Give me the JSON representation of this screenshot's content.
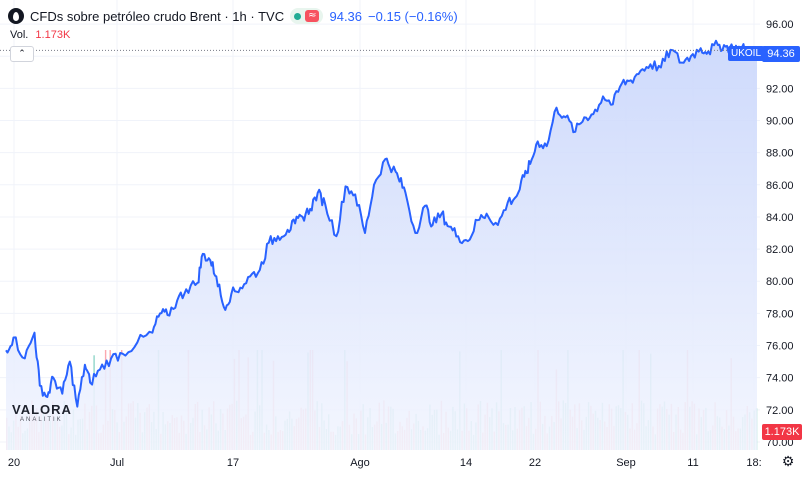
{
  "header": {
    "title": "CFDs sobre petróleo crudo Brent · 1h · TVC",
    "last_price": "94.36",
    "change": "−0.15 (−0.16%)",
    "volume_label": "Vol.",
    "volume_value": "1.173K",
    "status_icon": "market-open-dot",
    "waves_icon": "≈"
  },
  "collapse_glyph": "⌃",
  "symbol_tag": "UKOIL",
  "price_tag": "94.36",
  "volume_tag": "1.173K",
  "settings_glyph": "⚙",
  "watermark": {
    "brand": "VALORA",
    "sub": "ANALITIK"
  },
  "colors": {
    "line": "#2962ff",
    "area_top": "#c9d6fb",
    "area_bottom": "#f2f5fe",
    "volume_up": "#22ab94",
    "volume_down": "#f7525f",
    "price_tag": "#2962ff",
    "volume_tag": "#f23645"
  },
  "chart_data": {
    "type": "area",
    "title": "CFDs sobre petróleo crudo Brent · 1h · TVC",
    "xlabel": "",
    "ylabel": "",
    "x_tick_labels": [
      "20",
      "Jul",
      "17",
      "Ago",
      "14",
      "22",
      "Sep",
      "11",
      "18:"
    ],
    "y_ticks": [
      70,
      72,
      74,
      76,
      78,
      80,
      82,
      84,
      86,
      88,
      90,
      92,
      94,
      96
    ],
    "y_tick_labels": [
      "70.00",
      "72.00",
      "74.00",
      "76.00",
      "78.00",
      "80.00",
      "82.00",
      "84.00",
      "86.00",
      "88.00",
      "90.00",
      "92.00",
      "94.00",
      "96.00"
    ],
    "ylim": [
      69.5,
      97
    ],
    "x_range": [
      0,
      1000
    ],
    "grid": true,
    "legend": "none",
    "last_value": 94.36,
    "x": [
      0,
      10,
      25,
      38,
      45,
      55,
      63,
      75,
      85,
      95,
      105,
      112,
      125,
      140,
      155,
      175,
      195,
      205,
      215,
      228,
      240,
      255,
      262,
      272,
      280,
      290,
      300,
      312,
      325,
      338,
      350,
      362,
      375,
      385,
      395,
      405,
      415,
      425,
      440,
      452,
      465,
      478,
      490,
      505,
      515,
      522,
      532,
      545,
      558,
      568,
      580,
      590,
      602,
      615,
      628,
      640,
      655,
      668,
      680,
      690,
      698,
      708,
      720,
      733,
      745,
      758,
      770,
      782,
      795,
      808,
      820,
      832,
      845,
      858,
      872,
      885,
      900,
      912,
      925,
      935,
      948,
      958,
      968,
      978,
      988,
      1000
    ],
    "y": [
      75.7,
      76.5,
      75.2,
      76.8,
      73.5,
      72.8,
      74.0,
      73.0,
      75.0,
      72.2,
      74.8,
      73.7,
      74.5,
      75.2,
      75.5,
      76.2,
      76.8,
      78.0,
      77.9,
      78.8,
      79.5,
      79.9,
      81.7,
      81.3,
      80.3,
      78.4,
      79.2,
      79.6,
      80.3,
      80.7,
      82.4,
      82.8,
      83.2,
      83.6,
      84.0,
      84.5,
      85.5,
      84.8,
      82.8,
      85.9,
      85.4,
      83.0,
      86.0,
      87.6,
      87.0,
      86.5,
      85.5,
      83.0,
      84.7,
      83.5,
      84.2,
      83.4,
      82.8,
      82.5,
      83.8,
      84.2,
      83.5,
      84.9,
      85.3,
      86.5,
      87.3,
      88.7,
      88.4,
      90.8,
      90.2,
      89.3,
      90.2,
      90.4,
      91.5,
      91.0,
      92.3,
      92.5,
      93.1,
      93.5,
      93.3,
      94.4,
      93.6,
      94.0,
      94.5,
      94.3,
      94.7,
      94.6,
      94.5,
      94.5,
      94.4,
      94.36
    ],
    "volume_scale_max": 1
  }
}
